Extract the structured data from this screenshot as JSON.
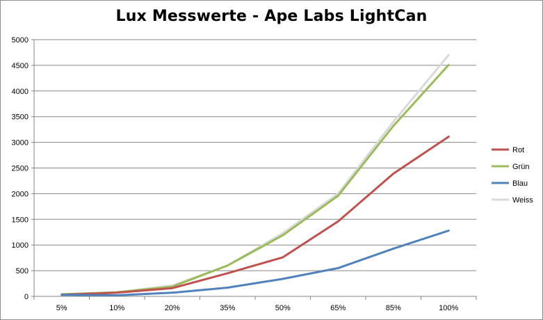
{
  "chart_data": {
    "type": "line",
    "title": "Lux Messwerte - Ape Labs LightCan",
    "xlabel": "",
    "ylabel": "",
    "categories": [
      "5%",
      "10%",
      "20%",
      "35%",
      "50%",
      "65%",
      "85%",
      "100%"
    ],
    "ylim": [
      0,
      5000
    ],
    "yticks": [
      0,
      500,
      1000,
      1500,
      2000,
      2500,
      3000,
      3500,
      4000,
      4500,
      5000
    ],
    "grid": true,
    "legend_position": "right",
    "series": [
      {
        "name": "Rot",
        "color": "#c0504d",
        "values": [
          30,
          70,
          160,
          450,
          760,
          1460,
          2390,
          3110
        ]
      },
      {
        "name": "Grün",
        "color": "#9bbb59",
        "values": [
          40,
          80,
          190,
          600,
          1190,
          1960,
          3320,
          4510
        ]
      },
      {
        "name": "Blau",
        "color": "#4f81bd",
        "values": [
          30,
          20,
          70,
          170,
          340,
          550,
          930,
          1280
        ]
      },
      {
        "name": "Weiss",
        "color": "#d9d9d9",
        "values": [
          30,
          80,
          210,
          600,
          1230,
          2000,
          3400,
          4700
        ]
      }
    ]
  }
}
